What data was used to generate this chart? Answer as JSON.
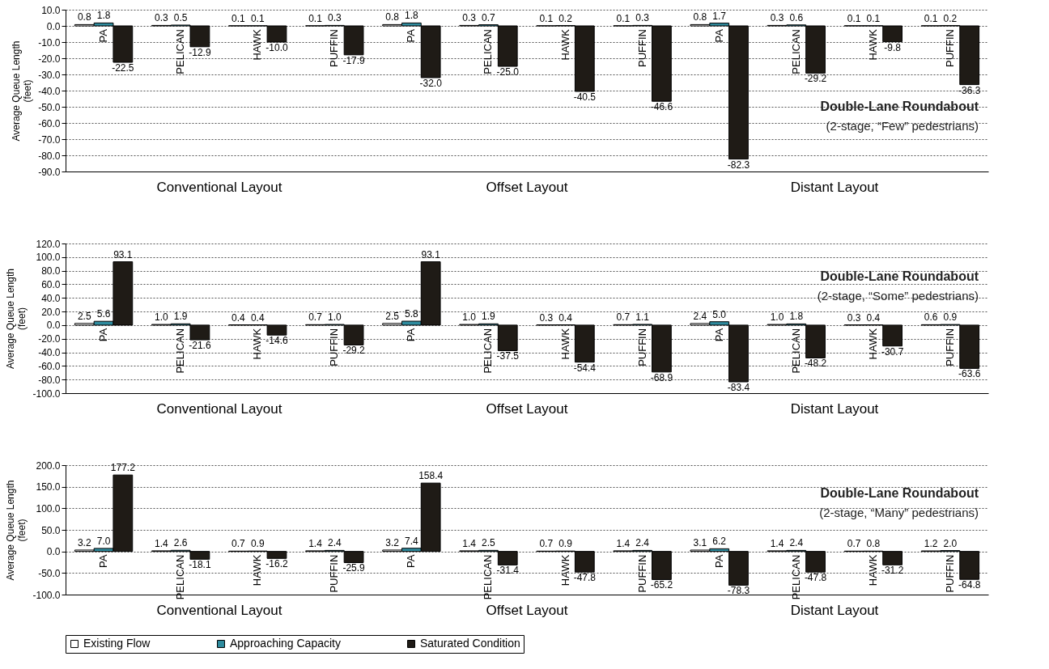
{
  "chart_data": [
    {
      "type": "bar",
      "title": "Double-Lane Roundabout",
      "subtitle": "(2-stage, “Few” pedestrians)",
      "ylabel": "Average Queue Length (feet)",
      "categories": [
        "PA",
        "PELICAN",
        "HAWK",
        "PUFFIN",
        "PA",
        "PELICAN",
        "HAWK",
        "PUFFIN",
        "PA",
        "PELICAN",
        "HAWK",
        "PUFFIN"
      ],
      "annotations": [
        "Conventional Layout",
        "Offset Layout",
        "Distant Layout"
      ],
      "series": [
        {
          "color": "#ffffff",
          "values": [
            0.8,
            0.3,
            0.1,
            0.1,
            0.8,
            0.3,
            0.1,
            0.1,
            0.8,
            0.3,
            0.1,
            0.1
          ],
          "value_labels": [
            "0.8",
            "0.3",
            "0.1",
            "0.1",
            "0.8",
            "0.3",
            "0.1",
            "0.1",
            "0.8",
            "0.3",
            "0.1",
            "0.1"
          ]
        },
        {
          "color": "#2e8b9e",
          "values": [
            1.8,
            0.5,
            0.1,
            0.3,
            1.8,
            0.7,
            0.2,
            0.3,
            1.7,
            0.6,
            0.1,
            0.2
          ],
          "value_labels": [
            "1.8",
            "0.5",
            "0.1",
            "0.3",
            "1.8",
            "0.7",
            "0.2",
            "0.3",
            "1.7",
            "0.6",
            "0.1",
            "0.2"
          ]
        },
        {
          "color": "#1f1b16",
          "values": [
            -22.5,
            -12.9,
            -10.0,
            -17.9,
            -32.0,
            -25.0,
            -40.5,
            -46.6,
            -82.3,
            -29.2,
            -9.8,
            -36.3
          ],
          "value_labels": [
            "-22.5",
            "-12.9",
            "-10.0",
            "-17.9",
            "-32.0",
            "-25.0",
            "-40.5",
            "-46.6",
            "-82.3",
            "-29.2",
            "-9.8",
            "-36.3"
          ]
        }
      ],
      "ylim": [
        -90,
        10
      ],
      "yticks": [
        {
          "value": -90,
          "label": "-90.0"
        },
        {
          "value": -80,
          "label": "-80.0"
        },
        {
          "value": -70,
          "label": "-70.0"
        },
        {
          "value": -60,
          "label": "-60.0"
        },
        {
          "value": -50,
          "label": "-50.0"
        },
        {
          "value": -40,
          "label": "-40.0"
        },
        {
          "value": -30,
          "label": "-30.0"
        },
        {
          "value": -20,
          "label": "-20.0"
        },
        {
          "value": -10,
          "label": "-10.0"
        },
        {
          "value": 0,
          "label": "0.0"
        },
        {
          "value": 10,
          "label": "10.0"
        }
      ],
      "grid": "y"
    },
    {
      "type": "bar",
      "title": "Double-Lane Roundabout",
      "subtitle": "(2-stage, “Some” pedestrians)",
      "ylabel": "Average Queue Length (feet)",
      "categories": [
        "PA",
        "PELICAN",
        "HAWK",
        "PUFFIN",
        "PA",
        "PELICAN",
        "HAWK",
        "PUFFIN",
        "PA",
        "PELICAN",
        "HAWK",
        "PUFFIN"
      ],
      "annotations": [
        "Conventional Layout",
        "Offset Layout",
        "Distant Layout"
      ],
      "series": [
        {
          "color": "#ffffff",
          "values": [
            2.5,
            1.0,
            0.4,
            0.7,
            2.5,
            1.0,
            0.3,
            0.7,
            2.4,
            1.0,
            0.3,
            0.6
          ],
          "value_labels": [
            "2.5",
            "1.0",
            "0.4",
            "0.7",
            "2.5",
            "1.0",
            "0.3",
            "0.7",
            "2.4",
            "1.0",
            "0.3",
            "0.6"
          ]
        },
        {
          "color": "#2e8b9e",
          "values": [
            5.6,
            1.9,
            0.4,
            1.0,
            5.8,
            1.9,
            0.4,
            1.1,
            5.0,
            1.8,
            0.4,
            0.9
          ],
          "value_labels": [
            "5.6",
            "1.9",
            "0.4",
            "1.0",
            "5.8",
            "1.9",
            "0.4",
            "1.1",
            "5.0",
            "1.8",
            "0.4",
            "0.9"
          ]
        },
        {
          "color": "#1f1b16",
          "values": [
            93.1,
            -21.6,
            -14.6,
            -29.2,
            93.1,
            -37.5,
            -54.4,
            -68.9,
            -83.4,
            -48.2,
            -30.7,
            -63.6
          ],
          "value_labels": [
            "93.1",
            "-21.6",
            "-14.6",
            "-29.2",
            "93.1",
            "-37.5",
            "-54.4",
            "-68.9",
            "-83.4",
            "-48.2",
            "-30.7",
            "-63.6"
          ]
        }
      ],
      "ylim": [
        -100,
        120
      ],
      "yticks": [
        {
          "value": -100,
          "label": "-100.0"
        },
        {
          "value": -80,
          "label": "-80.0"
        },
        {
          "value": -60,
          "label": "-60.0"
        },
        {
          "value": -40,
          "label": "-40.0"
        },
        {
          "value": -20,
          "label": "-20.0"
        },
        {
          "value": 0,
          "label": "0.0"
        },
        {
          "value": 20,
          "label": "20.0"
        },
        {
          "value": 40,
          "label": "40.0"
        },
        {
          "value": 60,
          "label": "60.0"
        },
        {
          "value": 80,
          "label": "80.0"
        },
        {
          "value": 100,
          "label": "100.0"
        },
        {
          "value": 120,
          "label": "120.0"
        }
      ],
      "grid": "y"
    },
    {
      "type": "bar",
      "title": "Double-Lane Roundabout",
      "subtitle": "(2-stage, “Many” pedestrians)",
      "ylabel": "Average Queue Length (feet)",
      "categories": [
        "PA",
        "PELICAN",
        "HAWK",
        "PUFFIN",
        "PA",
        "PELICAN",
        "HAWK",
        "PUFFIN",
        "PA",
        "PELICAN",
        "HAWK",
        "PUFFIN"
      ],
      "annotations": [
        "Conventional Layout",
        "Offset Layout",
        "Distant Layout"
      ],
      "series": [
        {
          "name": "Existing Flow",
          "color": "#ffffff",
          "values": [
            3.2,
            1.4,
            0.7,
            1.4,
            3.2,
            1.4,
            0.7,
            1.4,
            3.1,
            1.4,
            0.7,
            1.2
          ],
          "value_labels": [
            "3.2",
            "1.4",
            "0.7",
            "1.4",
            "3.2",
            "1.4",
            "0.7",
            "1.4",
            "3.1",
            "1.4",
            "0.7",
            "1.2"
          ]
        },
        {
          "name": "Approaching Capacity",
          "color": "#2e8b9e",
          "values": [
            7.0,
            2.6,
            0.9,
            2.4,
            7.4,
            2.5,
            0.9,
            2.4,
            6.2,
            2.4,
            0.8,
            2.0
          ],
          "value_labels": [
            "7.0",
            "2.6",
            "0.9",
            "2.4",
            "7.4",
            "2.5",
            "0.9",
            "2.4",
            "6.2",
            "2.4",
            "0.8",
            "2.0"
          ]
        },
        {
          "name": "Saturated Condition",
          "color": "#1f1b16",
          "values": [
            177.2,
            -18.1,
            -16.2,
            -25.9,
            158.4,
            -31.4,
            -47.8,
            -65.2,
            -78.3,
            -47.8,
            -31.2,
            -64.8
          ],
          "value_labels": [
            "177.2",
            "-18.1",
            "-16.2",
            "-25.9",
            "158.4",
            "-31.4",
            "-47.8",
            "-65.2",
            "-78.3",
            "-47.8",
            "-31.2",
            "-64.8"
          ]
        }
      ],
      "ylim": [
        -100,
        200
      ],
      "yticks": [
        {
          "value": -100,
          "label": "-100.0"
        },
        {
          "value": -50,
          "label": "-50.0"
        },
        {
          "value": 0,
          "label": "0.0"
        },
        {
          "value": 50,
          "label": "50.0"
        },
        {
          "value": 100,
          "label": "100.0"
        },
        {
          "value": 150,
          "label": "150.0"
        },
        {
          "value": 200,
          "label": "200.0"
        }
      ],
      "grid": "y",
      "legend": "bottom"
    }
  ]
}
